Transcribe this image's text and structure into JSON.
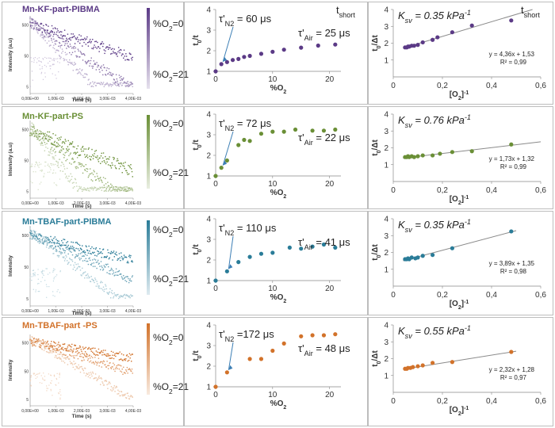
{
  "figure": {
    "corner_label": "t",
    "corner_label_sub": "short",
    "decay_axes": {
      "xlabel": "Time (s)",
      "ylabel_a": "Intensity (a.u)",
      "ylabel_b": "Intensity",
      "xticks": [
        "0,00E+00",
        "1,00E-03",
        "2,00E-03",
        "3,00E-03",
        "4,00E-03"
      ],
      "yticks": [
        "500",
        "50",
        "5"
      ]
    }
  },
  "chart_data": [
    {
      "id": "kf-pibma",
      "type": "scatter",
      "title": "Mn-KF-part-PIBMA",
      "color": "#5b3a86",
      "legend_top": "%O",
      "legend_top_sub": "2",
      "legend_top_val": "=0",
      "legend_bottom": "%O",
      "legend_bottom_sub": "2",
      "legend_bottom_val": "=21",
      "tau_n2": {
        "prefix": "τ'",
        "sub": "N2",
        "value": "= 60 μs"
      },
      "tau_air": {
        "prefix": "τ'",
        "sub": "Air",
        "value": "= 25 μs"
      },
      "ratio_plot": {
        "xlabel": "%O",
        "xlabel_sub": "2",
        "ylabel": "t",
        "ylabel_sub": "0",
        "ylabel_tail": "/t",
        "xlim": [
          0,
          22
        ],
        "ylim": [
          1,
          4
        ],
        "xticks": [
          "0",
          "10",
          "20"
        ],
        "yticks": [
          "1",
          "2",
          "3",
          "4"
        ],
        "x": [
          0,
          1,
          2,
          3,
          4,
          5,
          6,
          8,
          10,
          12,
          15,
          18,
          21
        ],
        "y": [
          1.0,
          1.35,
          1.45,
          1.55,
          1.6,
          1.7,
          1.75,
          1.85,
          1.95,
          2.05,
          2.15,
          2.25,
          2.3
        ]
      },
      "sv_plot": {
        "ksv_label": "K",
        "ksv_sub": "sv",
        "ksv_value": " = 0.35 kPa",
        "ksv_exp": "-1",
        "xlabel": "[O",
        "xlabel_sub": "2",
        "xlabel_tail": "]",
        "xlabel_exp": "-1",
        "ylabel": "t",
        "ylabel_sub": "0",
        "ylabel_tail": "/Δt",
        "xlim": [
          0,
          0.6
        ],
        "ylim": [
          0,
          4
        ],
        "xticks": [
          "0",
          "0,2",
          "0,4",
          "0,6"
        ],
        "yticks": [
          "0",
          "1",
          "2",
          "3",
          "4"
        ],
        "x": [
          0.048,
          0.055,
          0.06,
          0.065,
          0.075,
          0.085,
          0.1,
          0.12,
          0.16,
          0.18,
          0.24,
          0.32,
          0.48
        ],
        "y": [
          1.75,
          1.75,
          1.8,
          1.8,
          1.85,
          1.85,
          1.9,
          2.05,
          2.2,
          2.35,
          2.65,
          3.05,
          3.35
        ],
        "fit_slope": 4.36,
        "fit_intercept": 1.53,
        "fit_xrange": [
          0.04,
          0.58
        ],
        "equation": "y = 4,36x + 1,53",
        "r2": "R² = 0,99"
      },
      "decay": {
        "init": [
          550,
          600,
          700
        ],
        "tau": [
          0.0016,
          0.0008,
          0.0005
        ],
        "noise": 1.5,
        "tail": 5,
        "ylabel_key": "ylabel_a"
      }
    },
    {
      "id": "kf-ps",
      "type": "scatter",
      "title": "Mn-KF-part-PS",
      "color": "#6a8f36",
      "legend_top": "%O",
      "legend_top_sub": "2",
      "legend_top_val": "=0",
      "legend_bottom": "%O",
      "legend_bottom_sub": "2",
      "legend_bottom_val": "=21",
      "tau_n2": {
        "prefix": "τ'",
        "sub": "N2",
        "value": "= 72 μs"
      },
      "tau_air": {
        "prefix": "τ'",
        "sub": "Air",
        "value": "= 22 μs"
      },
      "ratio_plot": {
        "xlabel": "%O",
        "xlabel_sub": "2",
        "ylabel": "t",
        "ylabel_sub": "0",
        "ylabel_tail": "/t",
        "xlim": [
          0,
          22
        ],
        "ylim": [
          1,
          4
        ],
        "xticks": [
          "0",
          "10",
          "20"
        ],
        "yticks": [
          "1",
          "2",
          "3",
          "4"
        ],
        "x": [
          0,
          1,
          2,
          4,
          5,
          6,
          8,
          10,
          12,
          14,
          17,
          19,
          21
        ],
        "y": [
          1.0,
          1.4,
          1.75,
          2.5,
          2.75,
          2.7,
          3.05,
          3.15,
          3.15,
          3.25,
          3.2,
          3.2,
          3.25
        ]
      },
      "sv_plot": {
        "ksv_label": "K",
        "ksv_sub": "sv",
        "ksv_value": " = 0.76 kPa",
        "ksv_exp": "-1",
        "xlabel": "[O",
        "xlabel_sub": "2",
        "xlabel_tail": "]",
        "xlabel_exp": "-1",
        "ylabel": "t",
        "ylabel_sub": "0",
        "ylabel_tail": "/Δt",
        "xlim": [
          0,
          0.6
        ],
        "ylim": [
          0,
          4
        ],
        "xticks": [
          "0",
          "0,2",
          "0,4",
          "0,6"
        ],
        "yticks": [
          "0",
          "1",
          "2",
          "3",
          "4"
        ],
        "x": [
          0.048,
          0.055,
          0.06,
          0.065,
          0.075,
          0.085,
          0.1,
          0.12,
          0.16,
          0.19,
          0.24,
          0.32,
          0.48
        ],
        "y": [
          1.45,
          1.45,
          1.5,
          1.45,
          1.5,
          1.45,
          1.5,
          1.55,
          1.55,
          1.65,
          1.75,
          1.8,
          2.2
        ],
        "fit_slope": 1.73,
        "fit_intercept": 1.32,
        "fit_xrange": [
          0.04,
          0.6
        ],
        "equation": "y = 1,73x + 1,32",
        "r2": "R² = 0,99"
      },
      "decay": {
        "init": [
          500,
          550,
          650
        ],
        "tau": [
          0.0013,
          0.0007,
          0.0004
        ],
        "noise": 1.6,
        "tail": 5,
        "ylabel_key": "ylabel_a"
      }
    },
    {
      "id": "tbaf-pibma",
      "type": "scatter",
      "title": "Mn-TBAF-part-PIBMA",
      "color": "#2a7c98",
      "legend_top": "%O",
      "legend_top_sub": "2",
      "legend_top_val": "=0",
      "legend_bottom": "%O",
      "legend_bottom_sub": "2",
      "legend_bottom_val": "=21",
      "tau_n2": {
        "prefix": "τ'",
        "sub": "N2",
        "value": "= 110 μs"
      },
      "tau_air": {
        "prefix": "τ'",
        "sub": "Air",
        "value": "= 41 μs"
      },
      "ratio_plot": {
        "xlabel": "%O",
        "xlabel_sub": "2",
        "ylabel": "t",
        "ylabel_sub": "0",
        "ylabel_tail": "/t",
        "xlim": [
          0,
          22
        ],
        "ylim": [
          1,
          4
        ],
        "xticks": [
          "0",
          "10",
          "20"
        ],
        "yticks": [
          "1",
          "2",
          "3",
          "4"
        ],
        "x": [
          0,
          2,
          4,
          6,
          8,
          10,
          13,
          15,
          17,
          19,
          21
        ],
        "y": [
          1.0,
          1.45,
          1.9,
          2.15,
          2.3,
          2.35,
          2.6,
          2.55,
          2.65,
          2.75,
          2.6
        ]
      },
      "sv_plot": {
        "ksv_label": "K",
        "ksv_sub": "sv",
        "ksv_value": " = 0.35 kPa",
        "ksv_exp": "-1",
        "xlabel": "[O",
        "xlabel_sub": "2",
        "xlabel_tail": "]",
        "xlabel_exp": "-1",
        "ylabel": "t",
        "ylabel_sub": "0",
        "ylabel_tail": "/Δt",
        "xlim": [
          0,
          0.6
        ],
        "ylim": [
          0,
          4
        ],
        "xticks": [
          "0",
          "0,2",
          "0,4",
          "0,6"
        ],
        "yticks": [
          "0",
          "1",
          "2",
          "3",
          "4"
        ],
        "x": [
          0.048,
          0.055,
          0.06,
          0.065,
          0.075,
          0.09,
          0.1,
          0.12,
          0.16,
          0.24,
          0.48
        ],
        "y": [
          1.6,
          1.6,
          1.65,
          1.6,
          1.7,
          1.65,
          1.7,
          1.8,
          1.85,
          2.25,
          3.25
        ],
        "fit_slope": 3.89,
        "fit_intercept": 1.35,
        "fit_xrange": [
          0.04,
          0.5
        ],
        "equation": "y = 3,89x + 1,35",
        "r2": "R² = 0,98"
      },
      "decay": {
        "init": [
          500,
          550,
          650
        ],
        "tau": [
          0.0022,
          0.0012,
          0.0007
        ],
        "noise": 1.4,
        "tail": 5,
        "ylabel_key": "ylabel_b"
      }
    },
    {
      "id": "tbaf-ps",
      "type": "scatter",
      "title": "Mn-TBAF-part -PS",
      "color": "#d2722a",
      "legend_top": "%O",
      "legend_top_sub": "2",
      "legend_top_val": "=0",
      "legend_bottom": "%O",
      "legend_bottom_sub": "2",
      "legend_bottom_val": "=21",
      "tau_n2": {
        "prefix": "τ'",
        "sub": "N2",
        "value": "=172 μs"
      },
      "tau_air": {
        "prefix": "τ'",
        "sub": "Air",
        "value": "= 48 μs"
      },
      "ratio_plot": {
        "xlabel": "%O",
        "xlabel_sub": "2",
        "ylabel": "t",
        "ylabel_sub": "0",
        "ylabel_tail": "/t",
        "xlim": [
          0,
          22
        ],
        "ylim": [
          1,
          4
        ],
        "xticks": [
          "0",
          "10",
          "20"
        ],
        "yticks": [
          "1",
          "2",
          "3",
          "4"
        ],
        "x": [
          0,
          2,
          6,
          8,
          10,
          12,
          15,
          17,
          19,
          21
        ],
        "y": [
          1.0,
          1.7,
          2.35,
          2.35,
          2.75,
          3.1,
          3.45,
          3.5,
          3.5,
          3.55
        ]
      },
      "sv_plot": {
        "ksv_label": "K",
        "ksv_sub": "sv",
        "ksv_value": " = 0.55 kPa",
        "ksv_exp": "-1",
        "xlabel": "[O",
        "xlabel_sub": "2",
        "xlabel_tail": "]",
        "xlabel_exp": "-1",
        "ylabel": "t",
        "ylabel_sub": "0",
        "ylabel_tail": "/Δt",
        "xlim": [
          0,
          0.6
        ],
        "ylim": [
          0,
          4
        ],
        "xticks": [
          "0",
          "0,2",
          "0,4",
          "0,6"
        ],
        "yticks": [
          "0",
          "1",
          "2",
          "3",
          "4"
        ],
        "x": [
          0.048,
          0.055,
          0.06,
          0.07,
          0.08,
          0.1,
          0.12,
          0.16,
          0.24,
          0.48
        ],
        "y": [
          1.4,
          1.4,
          1.45,
          1.45,
          1.5,
          1.55,
          1.6,
          1.75,
          1.8,
          2.4
        ],
        "fit_slope": 2.32,
        "fit_intercept": 1.28,
        "fit_xrange": [
          0.04,
          0.5
        ],
        "equation": "y = 2,32x + 1,28",
        "r2": "R² = 0,97"
      },
      "decay": {
        "init": [
          550,
          600,
          700
        ],
        "tau": [
          0.003,
          0.0015,
          0.0008
        ],
        "noise": 1.4,
        "tail": 5,
        "ylabel_key": "ylabel_b"
      }
    }
  ]
}
